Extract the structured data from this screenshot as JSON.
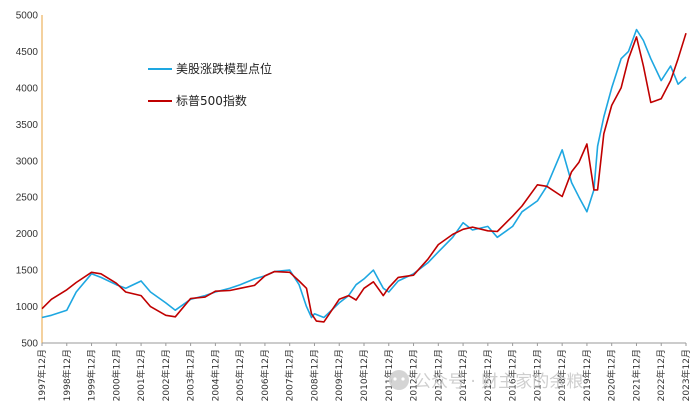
{
  "chart_data": {
    "type": "line",
    "title": "",
    "xlabel": "",
    "ylabel": "",
    "ylim": [
      500,
      5000
    ],
    "y_ticks": [
      500,
      1000,
      1500,
      2000,
      2500,
      3000,
      3500,
      4000,
      4500,
      5000
    ],
    "x_tick_labels": [
      "1997年12月",
      "1998年12月",
      "1999年12月",
      "2000年12月",
      "2001年12月",
      "2002年12月",
      "2003年12月",
      "2004年12月",
      "2005年12月",
      "2006年12月",
      "2007年12月",
      "2008年12月",
      "2009年12月",
      "2010年12月",
      "2011年12月",
      "2012年12月",
      "2013年12月",
      "2014年12月",
      "2015年12月",
      "2016年12月",
      "2017年12月",
      "2018年12月",
      "2019年12月",
      "2020年12月",
      "2021年12月",
      "2022年12月",
      "2023年12月"
    ],
    "legend_placement": "top-left",
    "grid": false,
    "series": [
      {
        "name": "美股涨跌模型点位",
        "color": "#1ea7e1",
        "x": [
          1997.92,
          1998.3,
          1998.92,
          1999.3,
          1999.92,
          2000.3,
          2000.92,
          2001.3,
          2001.92,
          2002.3,
          2002.92,
          2003.3,
          2003.92,
          2004.5,
          2004.92,
          2005.5,
          2005.92,
          2006.5,
          2006.92,
          2007.3,
          2007.92,
          2008.3,
          2008.6,
          2008.8,
          2008.92,
          2009.3,
          2009.92,
          2010.3,
          2010.6,
          2010.92,
          2011.3,
          2011.7,
          2011.92,
          2012.3,
          2012.92,
          2013.5,
          2013.92,
          2014.5,
          2014.92,
          2015.3,
          2015.92,
          2016.3,
          2016.92,
          2017.3,
          2017.92,
          2018.3,
          2018.92,
          2019.3,
          2019.6,
          2019.92,
          2020.2,
          2020.35,
          2020.6,
          2020.92,
          2021.3,
          2021.6,
          2021.92,
          2022.2,
          2022.5,
          2022.92,
          2023.3,
          2023.6,
          2023.92
        ],
        "values": [
          850,
          880,
          950,
          1200,
          1450,
          1400,
          1300,
          1250,
          1350,
          1200,
          1050,
          950,
          1100,
          1150,
          1200,
          1250,
          1300,
          1380,
          1420,
          1480,
          1500,
          1300,
          1000,
          850,
          900,
          850,
          1050,
          1150,
          1300,
          1380,
          1500,
          1250,
          1200,
          1350,
          1450,
          1600,
          1750,
          1950,
          2150,
          2050,
          2100,
          1950,
          2100,
          2300,
          2450,
          2650,
          3150,
          2700,
          2500,
          2300,
          2600,
          3200,
          3600,
          4000,
          4400,
          4500,
          4800,
          4650,
          4400,
          4100,
          4300,
          4050,
          4150
        ]
      },
      {
        "name": "标普500指数",
        "color": "#c00000",
        "x": [
          1997.92,
          1998.3,
          1998.92,
          1999.3,
          1999.92,
          2000.3,
          2000.92,
          2001.3,
          2001.92,
          2002.3,
          2002.92,
          2003.3,
          2003.92,
          2004.5,
          2004.92,
          2005.5,
          2005.92,
          2006.5,
          2006.92,
          2007.3,
          2007.92,
          2008.3,
          2008.6,
          2008.8,
          2009.0,
          2009.3,
          2009.92,
          2010.3,
          2010.6,
          2010.92,
          2011.3,
          2011.7,
          2011.92,
          2012.3,
          2012.92,
          2013.5,
          2013.92,
          2014.5,
          2014.92,
          2015.3,
          2015.92,
          2016.3,
          2016.92,
          2017.3,
          2017.92,
          2018.3,
          2018.92,
          2019.3,
          2019.6,
          2019.92,
          2020.2,
          2020.35,
          2020.6,
          2020.92,
          2021.3,
          2021.6,
          2021.92,
          2022.2,
          2022.5,
          2022.92,
          2023.3,
          2023.6,
          2023.92
        ],
        "values": [
          970,
          1100,
          1230,
          1330,
          1470,
          1450,
          1320,
          1200,
          1150,
          1000,
          880,
          860,
          1110,
          1130,
          1210,
          1220,
          1250,
          1290,
          1420,
          1480,
          1470,
          1350,
          1250,
          900,
          800,
          790,
          1100,
          1150,
          1090,
          1250,
          1340,
          1150,
          1260,
          1400,
          1430,
          1650,
          1850,
          1990,
          2060,
          2090,
          2040,
          2030,
          2240,
          2380,
          2670,
          2650,
          2510,
          2850,
          2980,
          3230,
          2600,
          2600,
          3370,
          3760,
          4000,
          4400,
          4700,
          4300,
          3800,
          3850,
          4100,
          4400,
          4750
        ]
      }
    ]
  },
  "watermark": {
    "text": "公众号 · 财主家的余粮"
  }
}
